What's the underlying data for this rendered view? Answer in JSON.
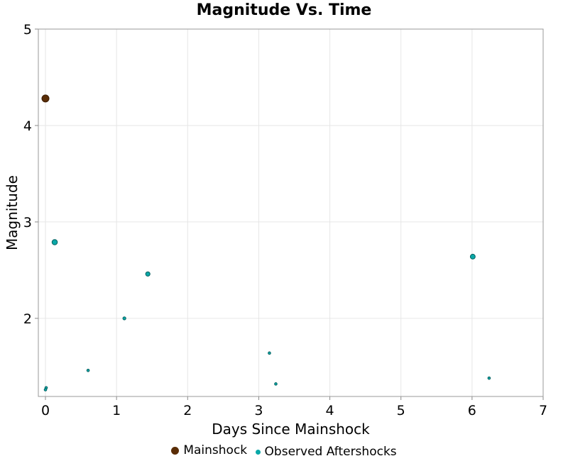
{
  "chart_data": {
    "type": "scatter",
    "title": "Magnitude Vs. Time",
    "xlabel": "Days Since Mainshock",
    "ylabel": "Magnitude",
    "xlim": [
      -0.1,
      7
    ],
    "ylim": [
      1.19,
      5
    ],
    "xticks": [
      "0",
      "1",
      "2",
      "3",
      "4",
      "5",
      "6",
      "7"
    ],
    "yticks": [
      "2",
      "3",
      "4",
      "5"
    ],
    "grid": true,
    "legend_position": "bottom",
    "series": [
      {
        "name": "Mainshock",
        "color": "#5a2d06",
        "points": [
          {
            "x": 0.0,
            "y": 4.28
          }
        ]
      },
      {
        "name": "Observed Aftershocks",
        "color": "#0aa8a8",
        "points": [
          {
            "x": 0.13,
            "y": 2.79
          },
          {
            "x": 0.01,
            "y": 1.28
          },
          {
            "x": 0.0,
            "y": 1.26
          },
          {
            "x": 0.6,
            "y": 1.46
          },
          {
            "x": 1.11,
            "y": 2.0
          },
          {
            "x": 1.44,
            "y": 2.46
          },
          {
            "x": 3.15,
            "y": 1.64
          },
          {
            "x": 3.24,
            "y": 1.32
          },
          {
            "x": 6.01,
            "y": 2.64
          },
          {
            "x": 6.24,
            "y": 1.38
          }
        ]
      }
    ]
  }
}
